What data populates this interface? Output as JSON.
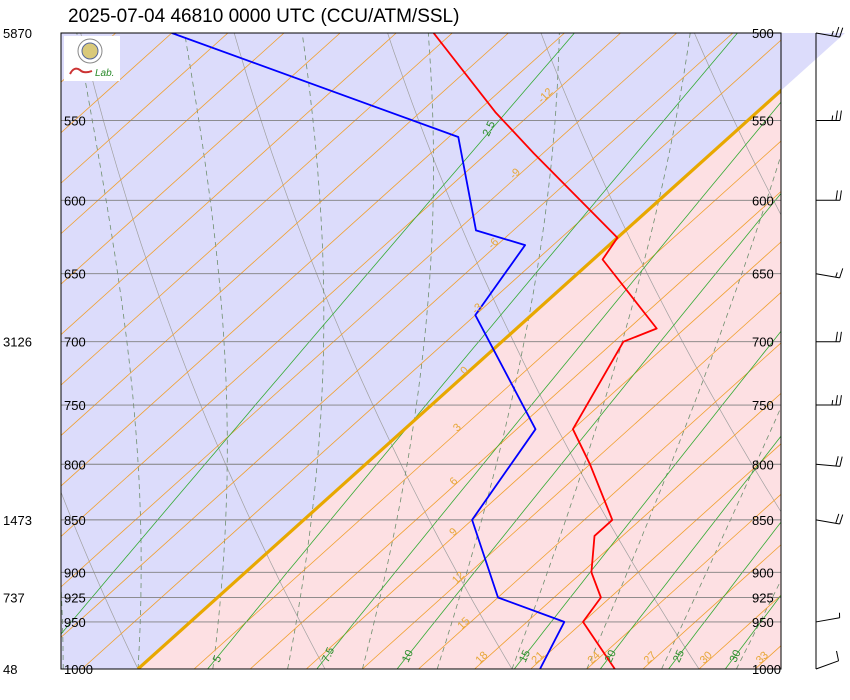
{
  "title": "2025-07-04 46810 0000 UTC (CCU/ATM/SSL)",
  "logo": {
    "text": "Lab."
  },
  "chart_data": {
    "type": "skew-t",
    "pressure_levels": [
      500,
      550,
      600,
      650,
      700,
      750,
      800,
      850,
      900,
      925,
      950,
      1000
    ],
    "height_labels": [
      {
        "p": 500,
        "h": "5870"
      },
      {
        "p": 700,
        "h": "3126"
      },
      {
        "p": 850,
        "h": "1473"
      },
      {
        "p": 925,
        "h": "737"
      },
      {
        "p": 1000,
        "h": "48"
      }
    ],
    "isotherm_labels": [
      "-12",
      "-9",
      "-6",
      "-3",
      "0",
      "3",
      "6",
      "9",
      "12",
      "15",
      "18",
      "21",
      "24",
      "27",
      "30",
      "33"
    ],
    "mixing_ratio_labels": [
      "2.5",
      "5",
      "7.5",
      "10",
      "15",
      "20",
      "25",
      "30"
    ],
    "temperature_profile": [
      {
        "p": 1000,
        "t": 25.5
      },
      {
        "p": 950,
        "t": 21.0
      },
      {
        "p": 925,
        "t": 20.5
      },
      {
        "p": 900,
        "t": 18.5
      },
      {
        "p": 865,
        "t": 16.5
      },
      {
        "p": 850,
        "t": 16.5
      },
      {
        "p": 800,
        "t": 12.0
      },
      {
        "p": 770,
        "t": 9.0
      },
      {
        "p": 700,
        "t": 6.5
      },
      {
        "p": 690,
        "t": 7.5
      },
      {
        "p": 640,
        "t": 0.5
      },
      {
        "p": 625,
        "t": 0.0
      },
      {
        "p": 570,
        "t": -9.5
      },
      {
        "p": 545,
        "t": -14.0
      },
      {
        "p": 500,
        "t": -22.0
      }
    ],
    "dewpoint_profile": [
      {
        "p": 1000,
        "t": 21.5
      },
      {
        "p": 950,
        "t": 20.0
      },
      {
        "p": 925,
        "t": 15.0
      },
      {
        "p": 850,
        "t": 9.0
      },
      {
        "p": 770,
        "t": 7.0
      },
      {
        "p": 680,
        "t": -3.0
      },
      {
        "p": 630,
        "t": -4.5
      },
      {
        "p": 620,
        "t": -8.0
      },
      {
        "p": 560,
        "t": -14.5
      },
      {
        "p": 500,
        "t": -36.0
      }
    ],
    "winds": [
      {
        "p": 1000,
        "dir": 250,
        "spd": 10
      },
      {
        "p": 950,
        "dir": 260,
        "spd": 5
      },
      {
        "p": 850,
        "dir": 280,
        "spd": 20
      },
      {
        "p": 800,
        "dir": 275,
        "spd": 20
      },
      {
        "p": 750,
        "dir": 270,
        "spd": 25
      },
      {
        "p": 700,
        "dir": 270,
        "spd": 20
      },
      {
        "p": 650,
        "dir": 280,
        "spd": 15
      },
      {
        "p": 600,
        "dir": 270,
        "spd": 20
      },
      {
        "p": 550,
        "dir": 270,
        "spd": 25
      },
      {
        "p": 500,
        "dir": 280,
        "spd": 25
      }
    ],
    "colors": {
      "temperature": "#ff0000",
      "dewpoint": "#0000ff",
      "isotherm": "#f0a030",
      "freezing_line": "#e8a800",
      "mixing_ratio": "#33aa33",
      "warm_fill": "#fde0e3",
      "cold_fill": "#dcdcfb"
    }
  }
}
